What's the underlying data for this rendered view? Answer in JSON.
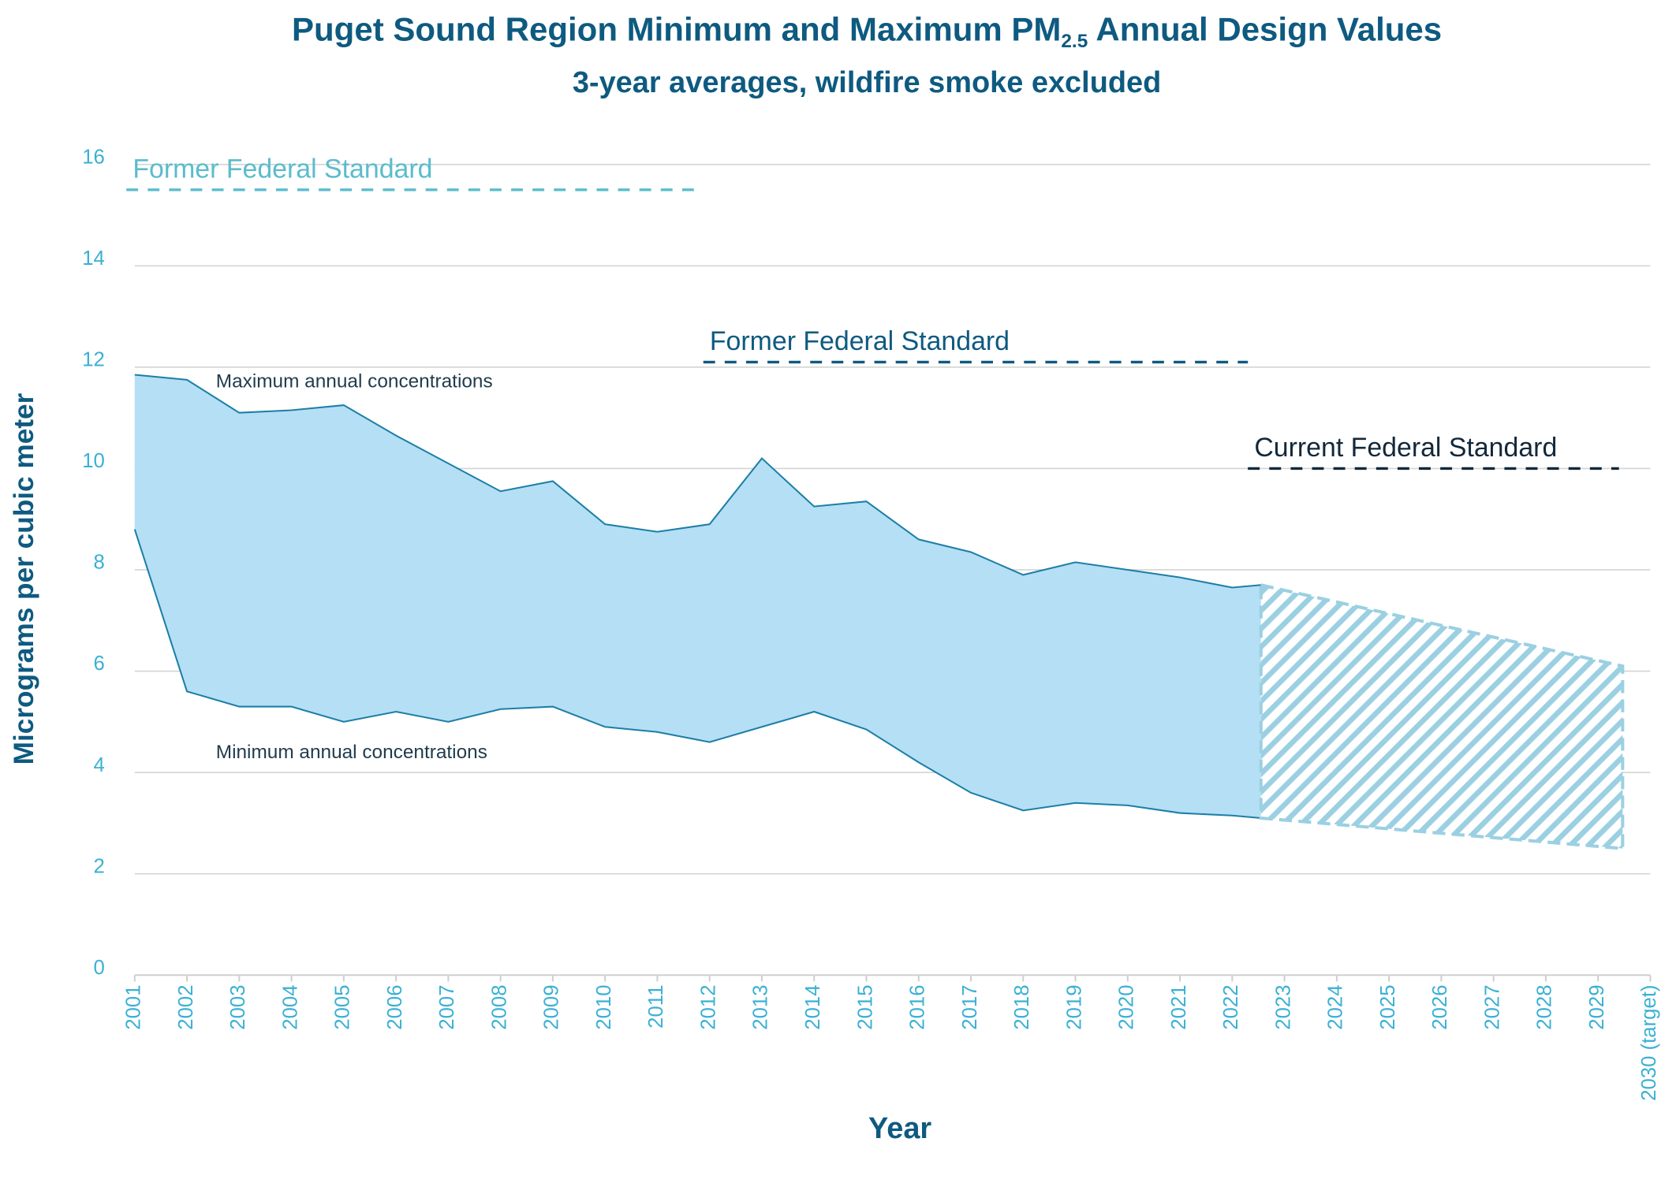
{
  "chart_data": {
    "type": "band",
    "title": {
      "main": "Puget Sound Region Minimum and Maximum PM",
      "subscript": "2.5",
      "rest": " Annual Design Values"
    },
    "subtitle": "3-year averages, wildfire smoke excluded",
    "x_label": "Year",
    "y_label": "Micrograms per cubic meter",
    "xlim": [
      2001,
      2030
    ],
    "xticks": [
      2001,
      2002,
      2003,
      2004,
      2005,
      2006,
      2007,
      2008,
      2009,
      2010,
      2011,
      2012,
      2013,
      2014,
      2015,
      2016,
      2017,
      2018,
      2019,
      2020,
      2021,
      2022,
      2023,
      2024,
      2025,
      2026,
      2027,
      2028,
      2029,
      {
        "value": 2030,
        "label": "2030 (target)"
      }
    ],
    "ylim": [
      0,
      16
    ],
    "yticks": [
      0,
      2,
      4,
      6,
      8,
      10,
      12,
      14,
      16
    ],
    "grid": true,
    "fill_color": "#b5dff5",
    "x": [
      2001,
      2002,
      2003,
      2004,
      2005,
      2006,
      2007,
      2008,
      2009,
      2010,
      2011,
      2012,
      2013,
      2014,
      2015,
      2016,
      2017,
      2018,
      2019,
      2020,
      2021,
      2022,
      2022.55
    ],
    "series": [
      {
        "name": "Maximum annual concentrations",
        "color": "#1c7fa6",
        "values": [
          11.85,
          11.75,
          11.1,
          11.15,
          11.25,
          10.65,
          10.1,
          9.55,
          9.75,
          8.9,
          8.75,
          8.9,
          10.2,
          9.25,
          9.35,
          8.6,
          8.35,
          7.9,
          8.15,
          8.0,
          7.85,
          7.65,
          7.7
        ]
      },
      {
        "name": "Minimum annual concentrations",
        "color": "#1c7fa6",
        "values": [
          8.8,
          5.6,
          5.3,
          5.3,
          5.0,
          5.2,
          5.0,
          5.25,
          5.3,
          4.9,
          4.8,
          4.6,
          4.9,
          5.2,
          4.85,
          4.2,
          3.6,
          3.25,
          3.4,
          3.35,
          3.2,
          3.15,
          3.1
        ]
      }
    ],
    "projection": {
      "x": [
        2022.55,
        2029.47
      ],
      "max": [
        7.7,
        6.1
      ],
      "min": [
        3.1,
        2.5
      ],
      "color": "#9bd0e2"
    },
    "reference_lines": [
      {
        "label": "Former Federal Standard",
        "value": 15.5,
        "x": [
          2000.84,
          2011.75
        ],
        "color": "#5bbccc"
      },
      {
        "label": "Former Federal Standard",
        "value": 12.1,
        "x": [
          2011.88,
          2022.3
        ],
        "color": "#0e5a80"
      },
      {
        "label": "Current Federal Standard",
        "value": 10,
        "x": [
          2022.3,
          2029.4
        ],
        "color": "#13283a"
      }
    ]
  }
}
